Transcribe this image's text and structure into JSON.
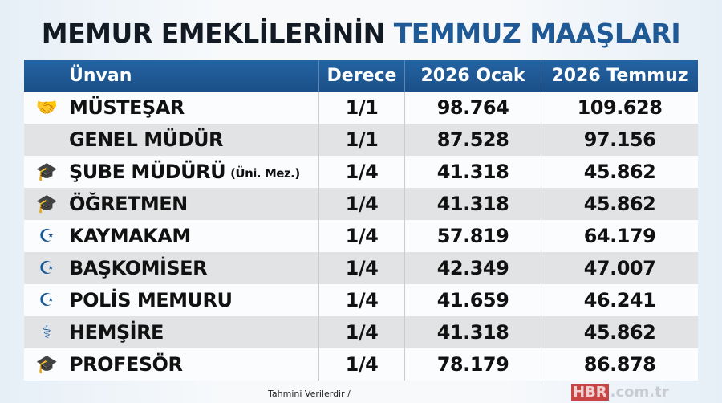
{
  "title": {
    "part1": "MEMUR EMEKLİLERİNİN",
    "part2": "TEMMUZ MAAŞLARI"
  },
  "headers": [
    "Ünvan",
    "Derece",
    "2026 Ocak",
    "2026 Temmuz"
  ],
  "rows": [
    {
      "icon": "handshake-icon",
      "glyph": "🤝",
      "title": "MÜSTEŞAR",
      "note": "",
      "derece": "1/1",
      "ocak": "98.764",
      "temmuz": "109.628"
    },
    {
      "icon": "",
      "glyph": "",
      "title": "GENEL MÜDÜR",
      "note": "",
      "derece": "1/1",
      "ocak": "87.528",
      "temmuz": "97.156"
    },
    {
      "icon": "graduation-cap-icon",
      "glyph": "🎓",
      "title": "ŞUBE MÜDÜRÜ",
      "note": "(Üni. Mez.)",
      "derece": "1/4",
      "ocak": "41.318",
      "temmuz": "45.862"
    },
    {
      "icon": "graduation-cap-icon",
      "glyph": "🎓",
      "title": "ÖĞRETMEN",
      "note": "",
      "derece": "1/4",
      "ocak": "41.318",
      "temmuz": "45.862"
    },
    {
      "icon": "crescent-star-icon",
      "glyph": "☪",
      "title": "KAYMAKAM",
      "note": "",
      "derece": "1/4",
      "ocak": "57.819",
      "temmuz": "64.179"
    },
    {
      "icon": "crescent-star-icon",
      "glyph": "☪",
      "title": "BAŞKOMİSER",
      "note": "",
      "derece": "1/4",
      "ocak": "42.349",
      "temmuz": "47.007"
    },
    {
      "icon": "crescent-star-icon",
      "glyph": "☪",
      "title": "POLİS MEMURU",
      "note": "",
      "derece": "1/4",
      "ocak": "41.659",
      "temmuz": "46.241"
    },
    {
      "icon": "caduceus-icon",
      "glyph": "⚕",
      "title": "HEMŞİRE",
      "note": "",
      "derece": "1/4",
      "ocak": "41.318",
      "temmuz": "45.862"
    },
    {
      "icon": "graduation-cap-icon",
      "glyph": "🎓",
      "title": "PROFESÖR",
      "note": "",
      "derece": "1/4",
      "ocak": "78.179",
      "temmuz": "86.878"
    }
  ],
  "footer": "Tahmini Verilerdir /",
  "watermark": {
    "brand": "HBR",
    "domain": ".com.tr"
  },
  "colors": {
    "header": "#1f5a96",
    "accent": "#1f5a96"
  }
}
